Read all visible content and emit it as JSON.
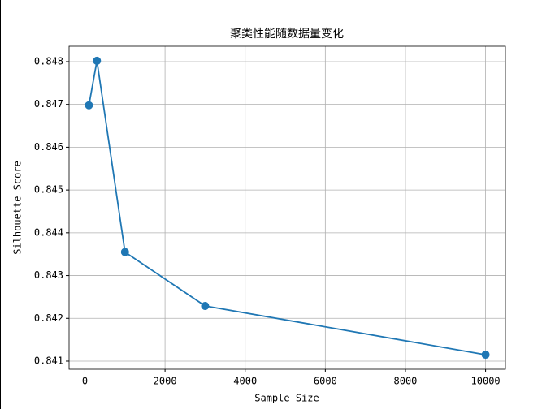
{
  "chart_data": {
    "type": "line",
    "title": "聚类性能随数据量变化",
    "x_label": "Sample Size",
    "y_label": "Silhouette Score",
    "x": [
      100,
      300,
      1000,
      3000,
      10000
    ],
    "series": [
      {
        "name": "Silhouette Score",
        "color": "#1f77b4",
        "values": [
          0.84698,
          0.84802,
          0.84355,
          0.84229,
          0.84115
        ]
      }
    ],
    "xlim": [
      -395,
      10495
    ],
    "xticks": [
      0,
      2000,
      4000,
      6000,
      8000,
      10000
    ],
    "ylim": [
      0.84081,
      0.84836
    ],
    "yticks": [
      0.841,
      0.842,
      0.843,
      0.844,
      0.845,
      0.846,
      0.847,
      0.848
    ],
    "grid": true,
    "markers": true
  }
}
